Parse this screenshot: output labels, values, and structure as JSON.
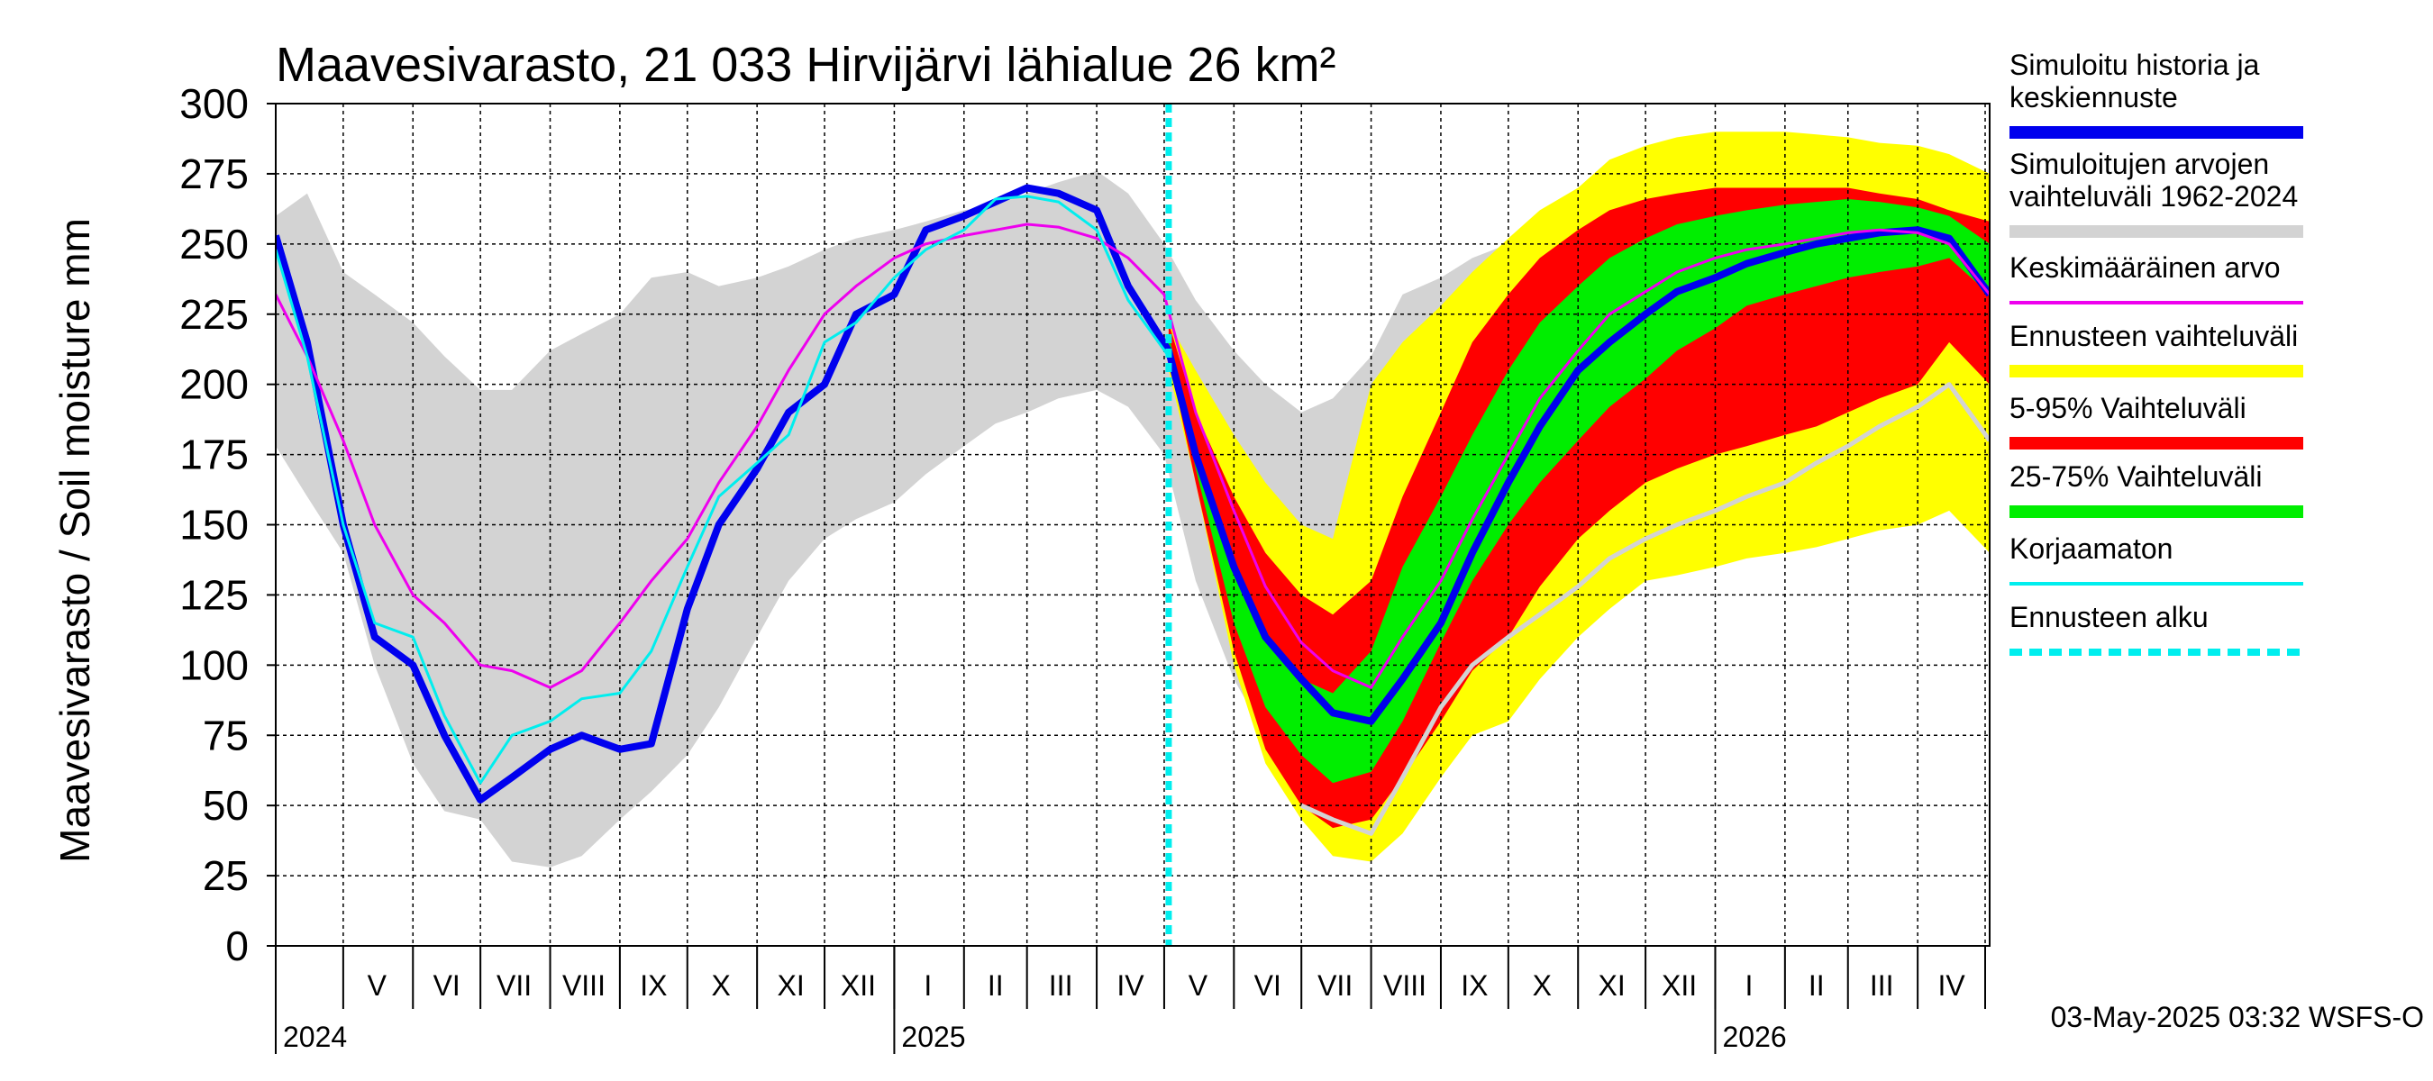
{
  "chart_data": {
    "type": "area",
    "title": "Maavesivarasto, 21 033 Hirvijärvi lähialue 26 km²",
    "ylabel": "Maavesivarasto / Soil moisture   mm",
    "ylim": [
      0,
      300
    ],
    "yticks": [
      0,
      25,
      50,
      75,
      100,
      125,
      150,
      175,
      200,
      225,
      250,
      275,
      300
    ],
    "xlim": [
      "2024-04-01",
      "2026-05-03"
    ],
    "grid": true,
    "legend_position": "right",
    "month_labels": [
      {
        "label": "V",
        "date": "2024-05-16"
      },
      {
        "label": "VI",
        "date": "2024-06-16"
      },
      {
        "label": "VII",
        "date": "2024-07-16"
      },
      {
        "label": "VIII",
        "date": "2024-08-16"
      },
      {
        "label": "IX",
        "date": "2024-09-16"
      },
      {
        "label": "X",
        "date": "2024-10-16"
      },
      {
        "label": "XI",
        "date": "2024-11-16"
      },
      {
        "label": "XII",
        "date": "2024-12-16"
      },
      {
        "label": "I",
        "date": "2025-01-16"
      },
      {
        "label": "II",
        "date": "2025-02-15"
      },
      {
        "label": "III",
        "date": "2025-03-16"
      },
      {
        "label": "IV",
        "date": "2025-04-16"
      },
      {
        "label": "V",
        "date": "2025-05-16"
      },
      {
        "label": "VI",
        "date": "2025-06-16"
      },
      {
        "label": "VII",
        "date": "2025-07-16"
      },
      {
        "label": "VIII",
        "date": "2025-08-16"
      },
      {
        "label": "IX",
        "date": "2025-09-16"
      },
      {
        "label": "X",
        "date": "2025-10-16"
      },
      {
        "label": "XI",
        "date": "2025-11-16"
      },
      {
        "label": "XII",
        "date": "2025-12-16"
      },
      {
        "label": "I",
        "date": "2026-01-16"
      },
      {
        "label": "II",
        "date": "2026-02-15"
      },
      {
        "label": "III",
        "date": "2026-03-16"
      },
      {
        "label": "IV",
        "date": "2026-04-16"
      }
    ],
    "year_labels": [
      {
        "label": "2024",
        "date": "2024-04-01"
      },
      {
        "label": "2025",
        "date": "2025-01-01"
      },
      {
        "label": "2026",
        "date": "2026-01-01"
      }
    ],
    "forecast_start": "2025-05-03",
    "footer": "03-May-2025 03:32 WSFS-O",
    "legend": [
      {
        "label": "Simuloitu historia ja keskiennuste",
        "color": "#0000ee",
        "style": "thick"
      },
      {
        "label": "Simuloitujen arvojen vaihteluväli 1962-2024",
        "color": "#d3d3d3",
        "style": "thick"
      },
      {
        "label": "Keskimääräinen arvo",
        "color": "#ee00ee",
        "style": "thin"
      },
      {
        "label": "Ennusteen vaihteluväli",
        "color": "#ffff00",
        "style": "thick"
      },
      {
        "label": "5-95% Vaihteluväli",
        "color": "#ff0000",
        "style": "thick"
      },
      {
        "label": "25-75% Vaihteluväli",
        "color": "#00ee00",
        "style": "thick"
      },
      {
        "label": "Korjaamaton",
        "color": "#00eeee",
        "style": "thin"
      },
      {
        "label": "Ennusteen alku",
        "color": "#00eeee",
        "style": "dashed"
      }
    ],
    "series": [
      {
        "name": "Simuloitujen arvojen vaihteluväli 1962-2024",
        "kind": "band",
        "color": "#d3d3d3",
        "x": [
          "2024-04-01",
          "2024-04-15",
          "2024-05-01",
          "2024-05-15",
          "2024-06-01",
          "2024-06-15",
          "2024-07-01",
          "2024-07-15",
          "2024-08-01",
          "2024-08-15",
          "2024-09-01",
          "2024-09-15",
          "2024-10-01",
          "2024-10-15",
          "2024-11-01",
          "2024-11-15",
          "2024-12-01",
          "2024-12-15",
          "2025-01-01",
          "2025-01-15",
          "2025-02-01",
          "2025-02-15",
          "2025-03-01",
          "2025-03-15",
          "2025-04-01",
          "2025-04-15",
          "2025-05-01",
          "2025-05-15",
          "2025-06-01",
          "2025-06-15",
          "2025-07-01",
          "2025-07-15",
          "2025-08-01",
          "2025-08-15",
          "2025-09-01",
          "2025-09-15",
          "2025-10-01",
          "2025-10-15",
          "2025-11-01",
          "2025-11-15",
          "2025-12-01",
          "2025-12-15",
          "2026-01-01",
          "2026-01-15",
          "2026-02-01",
          "2026-02-15",
          "2026-03-01",
          "2026-03-15",
          "2026-04-01",
          "2026-04-15",
          "2026-05-03"
        ],
        "high": [
          260,
          268,
          240,
          232,
          222,
          210,
          198,
          198,
          212,
          218,
          225,
          238,
          240,
          235,
          238,
          242,
          248,
          252,
          255,
          258,
          262,
          264,
          268,
          272,
          276,
          268,
          250,
          230,
          212,
          200,
          190,
          195,
          210,
          232,
          238,
          245,
          250,
          255,
          258,
          260,
          262,
          264,
          266,
          268,
          270,
          270,
          270,
          269,
          268,
          264,
          260
        ],
        "low": [
          178,
          160,
          140,
          100,
          65,
          48,
          45,
          30,
          28,
          32,
          45,
          55,
          68,
          85,
          110,
          130,
          145,
          152,
          158,
          168,
          178,
          186,
          190,
          195,
          198,
          192,
          175,
          130,
          95,
          75,
          62,
          58,
          70,
          95,
          110,
          128,
          138,
          148,
          155,
          160,
          166,
          170,
          175,
          178,
          181,
          183,
          185,
          188,
          190,
          190,
          188
        ]
      },
      {
        "name": "Ennusteen vaihteluväli",
        "kind": "band",
        "color": "#ffff00",
        "x": [
          "2025-05-03",
          "2025-05-15",
          "2025-06-01",
          "2025-06-15",
          "2025-07-01",
          "2025-07-15",
          "2025-08-01",
          "2025-08-15",
          "2025-09-01",
          "2025-09-15",
          "2025-10-01",
          "2025-10-15",
          "2025-11-01",
          "2025-11-15",
          "2025-12-01",
          "2025-12-15",
          "2026-01-01",
          "2026-01-15",
          "2026-02-01",
          "2026-02-15",
          "2026-03-01",
          "2026-03-15",
          "2026-04-01",
          "2026-04-15",
          "2026-05-03"
        ],
        "high": [
          222,
          205,
          182,
          165,
          150,
          145,
          200,
          215,
          228,
          240,
          252,
          262,
          270,
          280,
          285,
          288,
          290,
          290,
          290,
          289,
          288,
          286,
          285,
          282,
          275
        ],
        "low": [
          205,
          165,
          100,
          65,
          45,
          32,
          30,
          40,
          60,
          75,
          80,
          95,
          110,
          120,
          130,
          132,
          135,
          138,
          140,
          142,
          145,
          148,
          150,
          155,
          140
        ]
      },
      {
        "name": "5-95% Vaihteluväli",
        "kind": "band",
        "color": "#ff0000",
        "x": [
          "2025-05-03",
          "2025-05-15",
          "2025-06-01",
          "2025-06-15",
          "2025-07-01",
          "2025-07-15",
          "2025-08-01",
          "2025-08-15",
          "2025-09-01",
          "2025-09-15",
          "2025-10-01",
          "2025-10-15",
          "2025-11-01",
          "2025-11-15",
          "2025-12-01",
          "2025-12-15",
          "2026-01-01",
          "2026-01-15",
          "2026-02-01",
          "2026-02-15",
          "2026-03-01",
          "2026-03-15",
          "2026-04-01",
          "2026-04-15",
          "2026-05-03"
        ],
        "high": [
          222,
          190,
          160,
          140,
          125,
          118,
          130,
          160,
          190,
          215,
          232,
          245,
          255,
          262,
          266,
          268,
          270,
          270,
          270,
          270,
          270,
          268,
          266,
          262,
          258
        ],
        "low": [
          210,
          165,
          105,
          70,
          50,
          42,
          45,
          60,
          80,
          98,
          110,
          128,
          145,
          155,
          165,
          170,
          175,
          178,
          182,
          185,
          190,
          195,
          200,
          215,
          200
        ]
      },
      {
        "name": "25-75% Vaihteluväli",
        "kind": "band",
        "color": "#00ee00",
        "x": [
          "2025-05-03",
          "2025-05-15",
          "2025-06-01",
          "2025-06-15",
          "2025-07-01",
          "2025-07-15",
          "2025-08-01",
          "2025-08-15",
          "2025-09-01",
          "2025-09-15",
          "2025-10-01",
          "2025-10-15",
          "2025-11-01",
          "2025-11-15",
          "2025-12-01",
          "2025-12-15",
          "2026-01-01",
          "2026-01-15",
          "2026-02-01",
          "2026-02-15",
          "2026-03-01",
          "2026-03-15",
          "2026-04-01",
          "2026-04-15",
          "2026-05-03"
        ],
        "high": [
          218,
          175,
          135,
          108,
          95,
          90,
          105,
          135,
          160,
          182,
          205,
          222,
          235,
          245,
          252,
          257,
          260,
          262,
          264,
          265,
          266,
          265,
          263,
          260,
          250
        ],
        "low": [
          214,
          170,
          115,
          85,
          68,
          58,
          62,
          80,
          108,
          130,
          150,
          165,
          180,
          192,
          202,
          212,
          220,
          228,
          232,
          235,
          238,
          240,
          242,
          245,
          232
        ]
      },
      {
        "name": "Simuloitu historia ja keskiennuste",
        "kind": "line",
        "color": "#0000ee",
        "width": 8,
        "x": [
          "2024-04-01",
          "2024-04-15",
          "2024-05-01",
          "2024-05-15",
          "2024-06-01",
          "2024-06-15",
          "2024-07-01",
          "2024-07-15",
          "2024-08-01",
          "2024-08-15",
          "2024-09-01",
          "2024-09-15",
          "2024-10-01",
          "2024-10-15",
          "2024-11-01",
          "2024-11-15",
          "2024-12-01",
          "2024-12-15",
          "2025-01-01",
          "2025-01-15",
          "2025-02-01",
          "2025-02-15",
          "2025-03-01",
          "2025-03-15",
          "2025-04-01",
          "2025-04-15",
          "2025-05-03",
          "2025-05-15",
          "2025-06-01",
          "2025-06-15",
          "2025-07-01",
          "2025-07-15",
          "2025-08-01",
          "2025-08-15",
          "2025-09-01",
          "2025-09-15",
          "2025-10-01",
          "2025-10-15",
          "2025-11-01",
          "2025-11-15",
          "2025-12-01",
          "2025-12-15",
          "2026-01-01",
          "2026-01-15",
          "2026-02-01",
          "2026-02-15",
          "2026-03-01",
          "2026-03-15",
          "2026-04-01",
          "2026-04-15",
          "2026-05-03"
        ],
        "values": [
          253,
          215,
          150,
          110,
          100,
          75,
          52,
          60,
          70,
          75,
          70,
          72,
          120,
          150,
          170,
          190,
          200,
          225,
          232,
          255,
          260,
          265,
          270,
          268,
          262,
          235,
          212,
          175,
          135,
          110,
          95,
          83,
          80,
          95,
          115,
          140,
          165,
          185,
          205,
          215,
          225,
          233,
          238,
          243,
          247,
          250,
          252,
          254,
          255,
          252,
          232
        ]
      },
      {
        "name": "Keskimääräinen arvo",
        "kind": "line",
        "color": "#ee00ee",
        "width": 3,
        "x": [
          "2024-04-01",
          "2024-04-15",
          "2024-05-01",
          "2024-05-15",
          "2024-06-01",
          "2024-06-15",
          "2024-07-01",
          "2024-07-15",
          "2024-08-01",
          "2024-08-15",
          "2024-09-01",
          "2024-09-15",
          "2024-10-01",
          "2024-10-15",
          "2024-11-01",
          "2024-11-15",
          "2024-12-01",
          "2024-12-15",
          "2025-01-01",
          "2025-01-15",
          "2025-02-01",
          "2025-02-15",
          "2025-03-01",
          "2025-03-15",
          "2025-04-01",
          "2025-04-15",
          "2025-05-01",
          "2025-05-15",
          "2025-06-01",
          "2025-06-15",
          "2025-07-01",
          "2025-07-15",
          "2025-08-01",
          "2025-08-15",
          "2025-09-01",
          "2025-09-15",
          "2025-10-01",
          "2025-10-15",
          "2025-11-01",
          "2025-11-15",
          "2025-12-01",
          "2025-12-15",
          "2026-01-01",
          "2026-01-15",
          "2026-02-01",
          "2026-02-15",
          "2026-03-01",
          "2026-03-15",
          "2026-04-01",
          "2026-04-15",
          "2026-05-03"
        ],
        "values": [
          232,
          210,
          180,
          150,
          125,
          115,
          100,
          98,
          92,
          98,
          115,
          130,
          145,
          165,
          185,
          205,
          225,
          235,
          245,
          250,
          253,
          255,
          257,
          256,
          252,
          245,
          232,
          190,
          155,
          128,
          108,
          98,
          92,
          110,
          130,
          152,
          175,
          195,
          212,
          225,
          233,
          240,
          245,
          248,
          250,
          252,
          254,
          255,
          254,
          250,
          232
        ]
      },
      {
        "name": "Korjaamaton",
        "kind": "line",
        "color": "#00eeee",
        "width": 3,
        "x": [
          "2024-04-01",
          "2024-04-15",
          "2024-05-01",
          "2024-05-15",
          "2024-06-01",
          "2024-06-15",
          "2024-07-01",
          "2024-07-15",
          "2024-08-01",
          "2024-08-15",
          "2024-09-01",
          "2024-09-15",
          "2024-10-01",
          "2024-10-15",
          "2024-11-01",
          "2024-11-15",
          "2024-12-01",
          "2024-12-15",
          "2025-01-01",
          "2025-01-15",
          "2025-02-01",
          "2025-02-15",
          "2025-03-01",
          "2025-03-15",
          "2025-04-01",
          "2025-04-15",
          "2025-05-03"
        ],
        "values": [
          248,
          210,
          150,
          115,
          110,
          82,
          58,
          75,
          80,
          88,
          90,
          105,
          135,
          160,
          172,
          182,
          215,
          222,
          238,
          248,
          255,
          266,
          267,
          265,
          255,
          230,
          210
        ]
      },
      {
        "name": "Simuloitujen arvojen vaihteluväli 1962-2024 (ennuste)",
        "kind": "line",
        "color": "#d3d3d3",
        "width": 5,
        "x": [
          "2025-07-01",
          "2025-07-15",
          "2025-08-01",
          "2025-08-15",
          "2025-09-01",
          "2025-09-15",
          "2025-10-01",
          "2025-10-15",
          "2025-11-01",
          "2025-11-15",
          "2025-12-01",
          "2025-12-15",
          "2026-01-01",
          "2026-01-15",
          "2026-02-01",
          "2026-02-15",
          "2026-03-01",
          "2026-03-15",
          "2026-04-01",
          "2026-04-15",
          "2026-05-03"
        ],
        "values": [
          50,
          45,
          40,
          60,
          85,
          100,
          110,
          118,
          128,
          138,
          145,
          150,
          155,
          160,
          165,
          172,
          178,
          185,
          192,
          200,
          180
        ]
      }
    ]
  }
}
